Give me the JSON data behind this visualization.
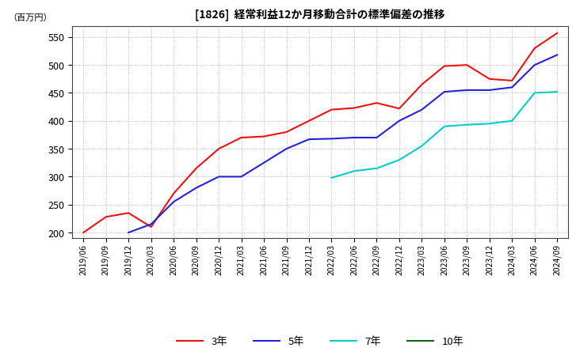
{
  "title": "[1826]  経常利益12か月移動合計の標準偏差の推移",
  "ylabel": "（百万円）",
  "ylim": [
    190,
    570
  ],
  "yticks": [
    200,
    250,
    300,
    350,
    400,
    450,
    500,
    550
  ],
  "background_color": "#ffffff",
  "plot_bg_color": "#ffffff",
  "grid_color": "#999999",
  "series": {
    "3年": {
      "color": "#ee1111",
      "linewidth": 1.5,
      "dates": [
        "2019/06",
        "2019/09",
        "2019/12",
        "2020/03",
        "2020/06",
        "2020/09",
        "2020/12",
        "2021/03",
        "2021/06",
        "2021/09",
        "2021/12",
        "2022/03",
        "2022/06",
        "2022/09",
        "2022/12",
        "2023/03",
        "2023/06",
        "2023/09",
        "2023/12",
        "2024/03",
        "2024/06",
        "2024/09"
      ],
      "values": [
        200,
        228,
        235,
        210,
        270,
        315,
        350,
        370,
        372,
        380,
        400,
        420,
        423,
        432,
        422,
        465,
        498,
        500,
        475,
        472,
        530,
        557
      ]
    },
    "5年": {
      "color": "#2222dd",
      "linewidth": 1.5,
      "dates": [
        "2019/12",
        "2020/03",
        "2020/06",
        "2020/09",
        "2020/12",
        "2021/03",
        "2021/06",
        "2021/09",
        "2021/12",
        "2022/03",
        "2022/06",
        "2022/09",
        "2022/12",
        "2023/03",
        "2023/06",
        "2023/09",
        "2023/12",
        "2024/03",
        "2024/06",
        "2024/09"
      ],
      "values": [
        200,
        215,
        255,
        280,
        300,
        300,
        325,
        350,
        367,
        368,
        370,
        370,
        400,
        420,
        452,
        455,
        455,
        460,
        500,
        518
      ]
    },
    "7年": {
      "color": "#00cccc",
      "linewidth": 1.5,
      "dates": [
        "2022/03",
        "2022/06",
        "2022/09",
        "2022/12",
        "2023/03",
        "2023/06",
        "2023/09",
        "2023/12",
        "2024/03",
        "2024/06",
        "2024/09"
      ],
      "values": [
        298,
        310,
        315,
        330,
        355,
        390,
        393,
        395,
        400,
        450,
        452
      ]
    },
    "10年": {
      "color": "#116611",
      "linewidth": 1.5,
      "dates": [],
      "values": []
    }
  },
  "legend_entries": [
    "3年",
    "5年",
    "7年",
    "10年"
  ],
  "xticklabels": [
    "2019/06",
    "2019/09",
    "2019/12",
    "2020/03",
    "2020/06",
    "2020/09",
    "2020/12",
    "2021/03",
    "2021/06",
    "2021/09",
    "2021/12",
    "2022/03",
    "2022/06",
    "2022/09",
    "2022/12",
    "2023/03",
    "2023/06",
    "2023/09",
    "2023/12",
    "2024/03",
    "2024/06",
    "2024/09"
  ]
}
